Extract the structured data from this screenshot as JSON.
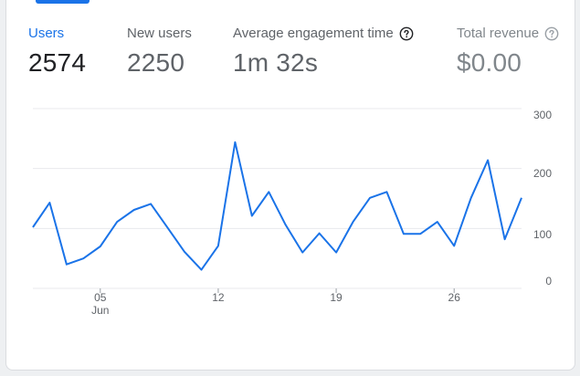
{
  "metrics": [
    {
      "label": "Users",
      "value": "2574",
      "icon": ""
    },
    {
      "label": "New users",
      "value": "2250",
      "icon": ""
    },
    {
      "label": "Average engagement time",
      "value": "1m 32s",
      "icon": "help-icon"
    },
    {
      "label": "Total revenue",
      "value": "$0.00",
      "icon": "help-icon"
    }
  ],
  "colors": {
    "accent": "#1a73e8",
    "grid": "#e8eaed",
    "text": "#5f6368"
  },
  "chart_data": {
    "type": "line",
    "x": [
      1,
      2,
      3,
      4,
      5,
      6,
      7,
      8,
      9,
      10,
      11,
      12,
      13,
      14,
      15,
      16,
      17,
      18,
      19,
      20,
      21,
      22,
      23,
      24,
      25,
      26,
      27,
      28,
      29,
      30
    ],
    "series": [
      {
        "values": [
          102,
          143,
          40,
          50,
          70,
          111,
          131,
          141,
          101,
          61,
          31,
          71,
          244,
          121,
          161,
          106,
          60,
          92,
          60,
          111,
          151,
          161,
          91,
          91,
          111,
          71,
          151,
          214,
          82,
          151
        ]
      }
    ],
    "ylim": [
      0,
      300
    ],
    "y_ticks": [
      "0",
      "100",
      "200",
      "300"
    ],
    "x_ticks": [
      {
        "x": 5,
        "label": "05",
        "sublabel": "Jun"
      },
      {
        "x": 12,
        "label": "12",
        "sublabel": ""
      },
      {
        "x": 19,
        "label": "19",
        "sublabel": ""
      },
      {
        "x": 26,
        "label": "26",
        "sublabel": ""
      }
    ],
    "grid": true
  }
}
